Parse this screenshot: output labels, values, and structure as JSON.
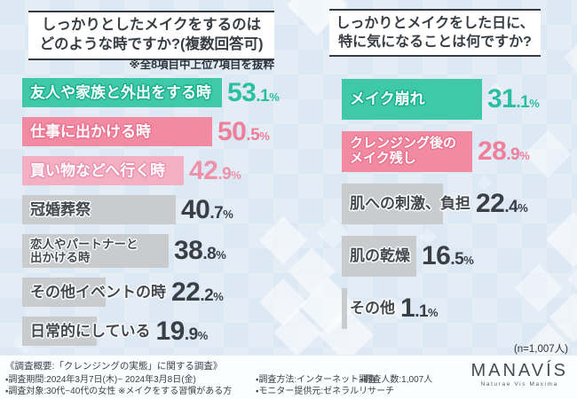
{
  "palette": {
    "teal": {
      "bar": "#3fc9a8",
      "outline": "#17ae8e",
      "pct": "#2abfa0"
    },
    "pink": {
      "bar": "#f28ba1",
      "outline": "#e97390",
      "pct": "#ef7e9a"
    },
    "pink_light": {
      "bar": "#f3b0c4",
      "outline": "#eb92ae",
      "pct": "#ee91ab"
    },
    "gray": {
      "bar": "#c9cbcd",
      "outline": "#ffffff",
      "pct": "#3a3f45"
    }
  },
  "background_color": "#dce8f4",
  "chart_data": [
    {
      "type": "bar",
      "title": "しっかりとしたメイクをするのは\nどのような時ですか?(複数回答可)",
      "note": "※全8項目中上位7項目を抜粋",
      "unit": "%",
      "orientation": "horizontal",
      "categories": [
        "友人や家族と外出をする時",
        "仕事に出かける時",
        "買い物などへ行く時",
        "冠婚葬祭",
        "恋人やパートナーと\n出かける時",
        "その他イベントの時",
        "日常的にしている"
      ],
      "values": [
        53.1,
        50.5,
        42.9,
        40.7,
        38.8,
        22.2,
        19.9
      ],
      "bar_variants": [
        "teal",
        "pink",
        "pink_light",
        "gray",
        "gray",
        "gray",
        "gray"
      ]
    },
    {
      "type": "bar",
      "title": "しっかりとメイクをした日に、\n特に気になることは何ですか?",
      "unit": "%",
      "orientation": "horizontal",
      "categories": [
        "メイク崩れ",
        "クレンジング後の\nメイク残し",
        "肌への刺激、負担",
        "肌の乾燥",
        "その他"
      ],
      "values": [
        31.1,
        28.9,
        22.4,
        16.5,
        1.1
      ],
      "bar_variants": [
        "teal",
        "pink",
        "gray",
        "gray",
        "gray"
      ],
      "sample_note": "(n=1,007人)"
    }
  ],
  "footer": {
    "survey_overview": "《調査概要:「クレンジングの実態」に関する調査》",
    "period": "・調査期間:2024年3月7日(木)~ 2024年3月8日(金)",
    "target": "・調査対象:30代~40代の女性 ※メイクをする習慣がある方",
    "method": "・調査方法:インターネット調査",
    "monitor": "・モニター提供元:ゼネラルリサーチ",
    "count": "・調査人数:1,007人",
    "logo": {
      "name": "MANAVÍS",
      "tagline": "Naturae Vis Maxima"
    }
  }
}
